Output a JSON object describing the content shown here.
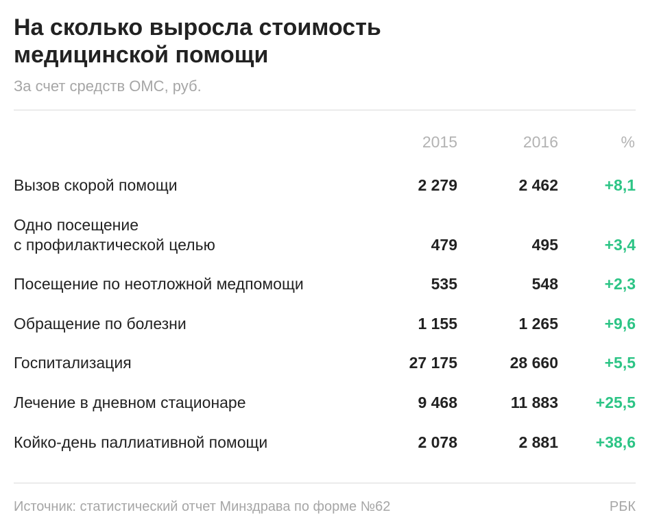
{
  "title": "На сколько выросла стоимость медицинской помощи",
  "subtitle": "За счет средств ОМС, руб.",
  "colors": {
    "text": "#222222",
    "muted": "#a6a6a6",
    "positive": "#2cc485",
    "rule": "#d9d9d9"
  },
  "chart_data": {
    "type": "table",
    "title": "На сколько выросла стоимость медицинской помощи",
    "subtitle": "За счет средств ОМС, руб.",
    "columns": [
      "2015",
      "2016",
      "%"
    ],
    "rows": [
      {
        "label": "Вызов скорой помощи",
        "v2015": "2 279",
        "v2016": "2 462",
        "pct": "+8,1"
      },
      {
        "label": "Одно посещение\nс профилактической целью",
        "v2015": "479",
        "v2016": "495",
        "pct": "+3,4"
      },
      {
        "label": "Посещение по неотложной медпомощи",
        "v2015": "535",
        "v2016": "548",
        "pct": "+2,3"
      },
      {
        "label": "Обращение по болезни",
        "v2015": "1 155",
        "v2016": "1 265",
        "pct": "+9,6"
      },
      {
        "label": "Госпитализация",
        "v2015": "27 175",
        "v2016": "28 660",
        "pct": "+5,5"
      },
      {
        "label": "Лечение в дневном стационаре",
        "v2015": "9 468",
        "v2016": "11 883",
        "pct": "+25,5"
      },
      {
        "label": "Койко-день паллиативной помощи",
        "v2015": "2 078",
        "v2016": "2 881",
        "pct": "+38,6"
      }
    ]
  },
  "footer": {
    "source": "Источник: статистический отчет Минздрава по форме №62",
    "brand": "РБК"
  }
}
